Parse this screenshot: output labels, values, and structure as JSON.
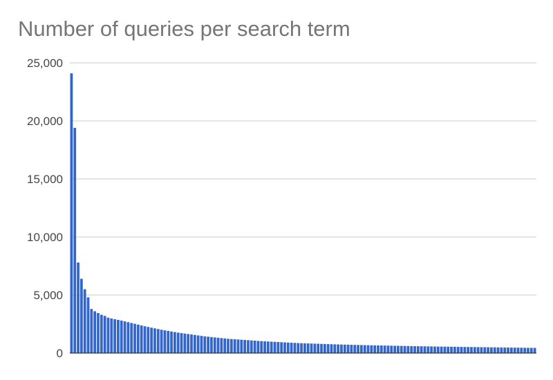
{
  "chart_data": {
    "type": "bar",
    "title": "Number of queries per search term",
    "xlabel": "",
    "ylabel": "",
    "ylim": [
      0,
      25000
    ],
    "yticks": [
      0,
      5000,
      10000,
      15000,
      20000,
      25000
    ],
    "ytick_labels": [
      "0",
      "5,000",
      "10,000",
      "15,000",
      "20,000",
      "25,000"
    ],
    "grid": true,
    "legend": "none",
    "bar_color": "#3366cc",
    "grid_color": "#cccccc",
    "axis_color": "#333333",
    "label_color": "#444444",
    "values": [
      24100,
      19400,
      7800,
      6400,
      5500,
      4800,
      3800,
      3600,
      3450,
      3300,
      3200,
      3050,
      2980,
      2920,
      2860,
      2800,
      2730,
      2660,
      2590,
      2520,
      2450,
      2380,
      2310,
      2250,
      2190,
      2130,
      2070,
      2010,
      1960,
      1910,
      1860,
      1810,
      1760,
      1720,
      1680,
      1640,
      1600,
      1560,
      1520,
      1480,
      1440,
      1410,
      1380,
      1350,
      1320,
      1290,
      1260,
      1230,
      1210,
      1190,
      1170,
      1150,
      1130,
      1110,
      1090,
      1070,
      1050,
      1030,
      1010,
      995,
      980,
      965,
      950,
      935,
      920,
      905,
      890,
      875,
      860,
      850,
      840,
      830,
      820,
      810,
      800,
      790,
      780,
      770,
      760,
      752,
      744,
      736,
      728,
      720,
      712,
      705,
      698,
      691,
      684,
      677,
      670,
      664,
      658,
      652,
      646,
      640,
      634,
      628,
      622,
      616,
      610,
      605,
      600,
      595,
      590,
      585,
      580,
      575,
      570,
      565,
      560,
      556,
      552,
      548,
      544,
      540,
      536,
      532,
      528,
      524,
      520,
      516,
      512,
      508,
      504,
      500,
      496,
      492,
      488,
      484,
      480,
      476,
      472,
      468,
      464,
      460,
      456,
      452,
      448,
      444
    ]
  }
}
